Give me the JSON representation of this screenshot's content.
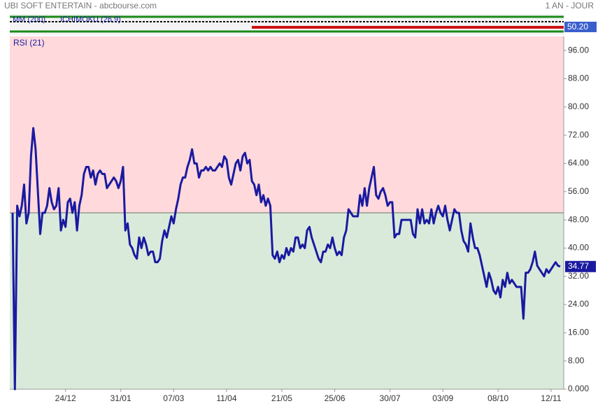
{
  "header": {
    "title": "UBI SOFT ENTERTAIN - abcbourse.com",
    "period": "1 AN - JOUR"
  },
  "top_pane": {
    "labels": [
      "MM (200)",
      "ICHIMOKU (26,9)"
    ],
    "last_value": "50.20"
  },
  "chart_data": {
    "type": "line",
    "series": [
      {
        "name": "RSI (21)",
        "color": "#1a1aa0",
        "values": [
          50,
          0,
          52,
          49,
          52,
          58,
          47,
          50,
          66,
          74,
          68,
          56,
          44,
          50,
          50,
          52,
          57,
          53,
          51,
          52,
          57,
          45,
          48,
          46,
          53,
          54,
          50,
          53,
          45,
          52,
          55,
          61,
          63,
          63,
          60,
          62,
          58,
          61,
          62,
          61,
          61,
          57,
          58,
          59,
          60,
          59,
          57,
          59,
          63,
          45,
          47,
          41,
          40,
          38,
          37,
          43,
          40,
          43,
          41,
          38,
          39,
          39,
          36,
          36,
          37,
          42,
          45,
          43,
          46,
          49,
          47,
          51,
          54,
          58,
          60,
          60,
          63,
          65,
          68,
          64,
          64,
          60,
          62,
          62,
          63,
          62,
          63,
          62,
          62,
          63,
          64,
          63,
          66,
          65,
          60,
          58,
          61,
          64,
          65,
          62,
          66,
          67,
          64,
          65,
          59,
          58,
          55,
          58,
          53,
          55,
          52,
          54,
          52,
          38,
          37,
          39,
          36,
          38,
          37,
          40,
          38,
          40,
          39,
          43,
          43,
          40,
          41,
          40,
          45,
          46,
          43,
          41,
          39,
          37,
          36,
          39,
          39,
          41,
          40,
          43,
          40,
          38,
          39,
          38,
          43,
          45,
          51,
          50,
          49,
          49,
          49,
          55,
          52,
          57,
          52,
          57,
          60,
          63,
          55,
          54,
          56,
          57,
          55,
          52,
          53,
          53,
          43,
          44,
          44,
          48,
          48,
          48,
          48,
          48,
          44,
          43,
          51,
          47,
          51,
          47,
          48,
          47,
          51,
          47,
          50,
          52,
          50,
          49,
          52,
          48,
          45,
          48,
          51,
          50,
          50,
          45,
          42,
          41,
          39,
          47,
          43,
          40,
          40,
          38,
          35,
          32,
          29,
          33,
          31,
          28,
          27,
          29,
          26,
          31,
          29,
          33,
          30,
          31,
          30,
          29,
          29,
          29,
          20,
          33,
          33,
          34,
          36,
          39,
          35,
          34,
          33,
          32,
          34,
          33,
          34,
          35,
          36,
          35,
          34.77
        ]
      }
    ],
    "xlim": [
      0,
      238
    ],
    "xticks": [
      {
        "value": 23,
        "label": "24/12"
      },
      {
        "value": 47,
        "label": "31/01"
      },
      {
        "value": 70,
        "label": "07/03"
      },
      {
        "value": 93,
        "label": "11/04"
      },
      {
        "value": 117,
        "label": "21/05"
      },
      {
        "value": 140,
        "label": "25/06"
      },
      {
        "value": 164,
        "label": "30/07"
      },
      {
        "value": 187,
        "label": "03/09"
      },
      {
        "value": 211,
        "label": "08/10"
      },
      {
        "value": 234,
        "label": "12/11"
      }
    ],
    "ylim": [
      0,
      100
    ],
    "yticks": [
      {
        "value": 0,
        "label": "0.000"
      },
      {
        "value": 8,
        "label": "8.00"
      },
      {
        "value": 16,
        "label": "16.00"
      },
      {
        "value": 24,
        "label": "24.00"
      },
      {
        "value": 32,
        "label": "32.00"
      },
      {
        "value": 40,
        "label": "40.00"
      },
      {
        "value": 48,
        "label": "48.00"
      },
      {
        "value": 56,
        "label": "56.00"
      },
      {
        "value": 64,
        "label": "64.00"
      },
      {
        "value": 72,
        "label": "72.00"
      },
      {
        "value": 80,
        "label": "80.00"
      },
      {
        "value": 88,
        "label": "88.00"
      },
      {
        "value": 96,
        "label": "96.00"
      }
    ],
    "reference_line": 50,
    "above_color": "#ffd9db",
    "below_color": "#d9eadb"
  }
}
